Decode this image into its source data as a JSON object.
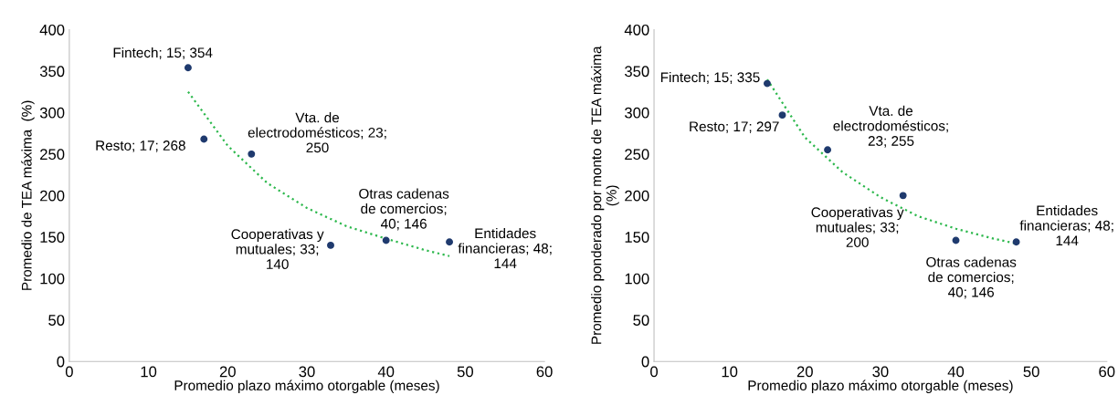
{
  "chart_data": [
    {
      "type": "scatter",
      "xlabel": "Promedio plazo máximo otorgable (meses)",
      "ylabel": "Promedio de TEA máxima  (%)",
      "xlim": [
        0,
        60
      ],
      "xticks": [
        0,
        10,
        20,
        30,
        40,
        50,
        60
      ],
      "ylim": [
        0,
        400
      ],
      "yticks": [
        0,
        50,
        100,
        150,
        200,
        250,
        300,
        350,
        400
      ],
      "grid": false,
      "legend": false,
      "marker": "circle",
      "series": [
        {
          "color": "#1f3a6e",
          "x": [
            15,
            17,
            23,
            33,
            40,
            48
          ],
          "values": [
            354,
            268,
            250,
            140,
            146,
            144
          ]
        },
        {
          "type": "line",
          "color": "#2db84d",
          "line_style": "dotted",
          "marker": "none",
          "x": [
            15,
            20,
            25,
            30,
            35,
            40,
            45,
            48
          ],
          "values": [
            325,
            260,
            215,
            185,
            163,
            148,
            134,
            127
          ]
        }
      ],
      "annotations": [
        {
          "text": "Fintech; 15; 354",
          "x": 15,
          "y": 354
        },
        {
          "text": "Resto; 17; 268",
          "x": 17,
          "y": 268
        },
        {
          "text": "Vta. de\nelectrodomésticos; 23;\n250",
          "x": 23,
          "y": 250
        },
        {
          "text": "Cooperativas y\nmutuales; 33;\n140",
          "x": 33,
          "y": 140
        },
        {
          "text": "Otras cadenas\nde comercios;\n40; 146",
          "x": 40,
          "y": 146
        },
        {
          "text": "Entidades\nfinancieras; 48;\n144",
          "x": 48,
          "y": 144
        }
      ]
    },
    {
      "type": "scatter",
      "xlabel": "Promedio plazo máximo otorgable (meses)",
      "ylabel": "Promedio ponderado por monto de TEA máxima\n(%)",
      "xlim": [
        0,
        60
      ],
      "xticks": [
        0,
        10,
        20,
        30,
        40,
        50,
        60
      ],
      "ylim": [
        0,
        400
      ],
      "yticks": [
        0,
        50,
        100,
        150,
        200,
        250,
        300,
        350,
        400
      ],
      "grid": false,
      "legend": false,
      "marker": "circle",
      "series": [
        {
          "color": "#1f3a6e",
          "x": [
            15,
            17,
            23,
            33,
            40,
            48
          ],
          "values": [
            335,
            297,
            255,
            200,
            146,
            144
          ]
        },
        {
          "type": "line",
          "color": "#2db84d",
          "line_style": "dotted",
          "marker": "none",
          "x": [
            15,
            20,
            25,
            30,
            35,
            40,
            45,
            48
          ],
          "values": [
            340,
            270,
            228,
            198,
            175,
            160,
            148,
            142
          ]
        }
      ],
      "annotations": [
        {
          "text": "Fintech; 15; 335",
          "x": 15,
          "y": 335
        },
        {
          "text": "Resto; 17; 297",
          "x": 17,
          "y": 297
        },
        {
          "text": "Vta. de\nelectrodomésticos;\n23; 255",
          "x": 23,
          "y": 255
        },
        {
          "text": "Cooperativas y\nmutuales; 33;\n200",
          "x": 33,
          "y": 200
        },
        {
          "text": "Otras cadenas\nde comercios;\n40; 146",
          "x": 40,
          "y": 146
        },
        {
          "text": "Entidades\nfinancieras; 48;\n144",
          "x": 48,
          "y": 144
        }
      ]
    }
  ]
}
